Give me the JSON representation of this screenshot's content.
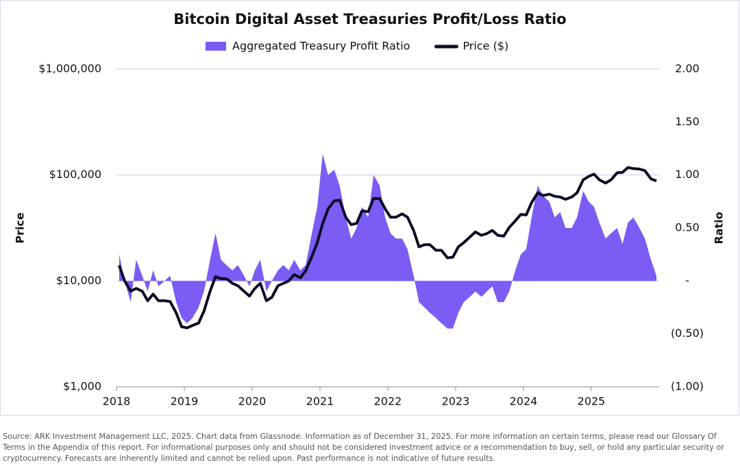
{
  "chart_data": {
    "type": "combo",
    "title": "Bitcoin Digital Asset Treasuries Profit/Loss Ratio",
    "y_label": "Price",
    "y2_label": "Ratio",
    "source": "Source: ARK Investment Management LLC, 2025. Chart data from Glassnode. Information as of December 31, 2025. For more information on certain terms, please read our Glossary Of Terms in the Appendix of this report. For informational purposes only and should not be considered investment advice or a recommendation to buy, sell, or hold any particular security or cryptocurrency. Forecasts are inherently limited and cannot be relied upon. Past performance is not indicative of future results.",
    "yscale": "log",
    "grid": true,
    "xlim": [
      2018,
      2026
    ],
    "xticks": [
      2018,
      2019,
      2020,
      2021,
      2022,
      2023,
      2024,
      2025
    ],
    "ylim": [
      1000,
      1000000
    ],
    "yticks": [
      {
        "value": 1000,
        "label": "$1,000"
      },
      {
        "value": 10000,
        "label": "$10,000"
      },
      {
        "value": 100000,
        "label": "$100,000"
      },
      {
        "value": 1000000,
        "label": "$1,000,000"
      }
    ],
    "y2lim": [
      -1,
      2
    ],
    "y2ticks": [
      {
        "value": -1,
        "label": "(1.00)"
      },
      {
        "value": -0.5,
        "label": "(0.50)"
      },
      {
        "value": 0,
        "label": "-"
      },
      {
        "value": 0.5,
        "label": "0.50"
      },
      {
        "value": 1,
        "label": "1.00"
      },
      {
        "value": 1.5,
        "label": "1.50"
      },
      {
        "value": 2,
        "label": "2.00"
      }
    ],
    "x": [
      2018.04,
      2018.12,
      2018.21,
      2018.29,
      2018.38,
      2018.46,
      2018.54,
      2018.62,
      2018.71,
      2018.79,
      2018.88,
      2018.96,
      2019.04,
      2019.12,
      2019.21,
      2019.29,
      2019.38,
      2019.46,
      2019.54,
      2019.62,
      2019.71,
      2019.79,
      2019.88,
      2019.96,
      2020.04,
      2020.12,
      2020.21,
      2020.29,
      2020.38,
      2020.46,
      2020.54,
      2020.62,
      2020.71,
      2020.79,
      2020.88,
      2020.96,
      2021.04,
      2021.12,
      2021.21,
      2021.29,
      2021.38,
      2021.46,
      2021.54,
      2021.62,
      2021.71,
      2021.79,
      2021.88,
      2021.96,
      2022.04,
      2022.12,
      2022.21,
      2022.29,
      2022.38,
      2022.46,
      2022.54,
      2022.62,
      2022.71,
      2022.79,
      2022.88,
      2022.96,
      2023.04,
      2023.12,
      2023.21,
      2023.29,
      2023.38,
      2023.46,
      2023.54,
      2023.62,
      2023.71,
      2023.79,
      2023.88,
      2023.96,
      2024.04,
      2024.12,
      2024.21,
      2024.29,
      2024.38,
      2024.46,
      2024.54,
      2024.62,
      2024.71,
      2024.79,
      2024.88,
      2024.96,
      2025.04,
      2025.12,
      2025.21,
      2025.29,
      2025.38,
      2025.46,
      2025.54,
      2025.62,
      2025.71,
      2025.79,
      2025.88,
      2025.96
    ],
    "series": [
      {
        "name": "Aggregated Treasury Profit Ratio",
        "type": "area",
        "axis": "y2",
        "color": "#7b5cf5",
        "values": [
          0.25,
          0.0,
          -0.2,
          0.2,
          0.05,
          -0.1,
          0.1,
          -0.05,
          0.0,
          0.05,
          -0.2,
          -0.35,
          -0.4,
          -0.35,
          -0.25,
          -0.1,
          0.2,
          0.45,
          0.2,
          0.15,
          0.1,
          0.15,
          0.05,
          -0.05,
          0.1,
          0.2,
          -0.1,
          0.0,
          0.1,
          0.15,
          0.1,
          0.2,
          0.1,
          0.15,
          0.45,
          0.7,
          1.2,
          1.0,
          1.05,
          0.9,
          0.6,
          0.4,
          0.5,
          0.7,
          0.6,
          1.0,
          0.9,
          0.6,
          0.45,
          0.4,
          0.4,
          0.3,
          0.05,
          -0.2,
          -0.25,
          -0.3,
          -0.35,
          -0.4,
          -0.45,
          -0.45,
          -0.3,
          -0.2,
          -0.15,
          -0.1,
          -0.15,
          -0.1,
          -0.05,
          -0.2,
          -0.2,
          -0.1,
          0.1,
          0.25,
          0.3,
          0.6,
          0.9,
          0.8,
          0.75,
          0.6,
          0.65,
          0.5,
          0.5,
          0.6,
          0.85,
          0.75,
          0.7,
          0.55,
          0.4,
          0.45,
          0.5,
          0.35,
          0.55,
          0.6,
          0.5,
          0.4,
          0.2,
          0.05
        ]
      },
      {
        "name": "Price ($)",
        "type": "line",
        "color": "#0b0b24",
        "values": [
          14000,
          10000,
          8000,
          8500,
          8000,
          6500,
          7500,
          6500,
          6500,
          6400,
          5000,
          3700,
          3600,
          3800,
          4000,
          5200,
          8000,
          11000,
          10500,
          10500,
          9500,
          9000,
          8000,
          7200,
          8500,
          9500,
          6500,
          7000,
          9000,
          9500,
          10000,
          11500,
          10700,
          12500,
          17000,
          23000,
          35000,
          48000,
          57000,
          58000,
          40000,
          34000,
          35000,
          46000,
          45000,
          60000,
          60000,
          48000,
          40000,
          40000,
          43000,
          40000,
          30000,
          21000,
          22000,
          22000,
          19500,
          19500,
          16500,
          16800,
          21000,
          23000,
          26000,
          29000,
          27000,
          28000,
          30000,
          27000,
          26500,
          32000,
          37000,
          42500,
          42000,
          55000,
          68000,
          64000,
          66000,
          63000,
          62000,
          59000,
          62000,
          68000,
          90000,
          97000,
          102000,
          90000,
          84000,
          90000,
          105000,
          106000,
          118000,
          115000,
          114000,
          110000,
          92000,
          88000
        ]
      }
    ]
  }
}
